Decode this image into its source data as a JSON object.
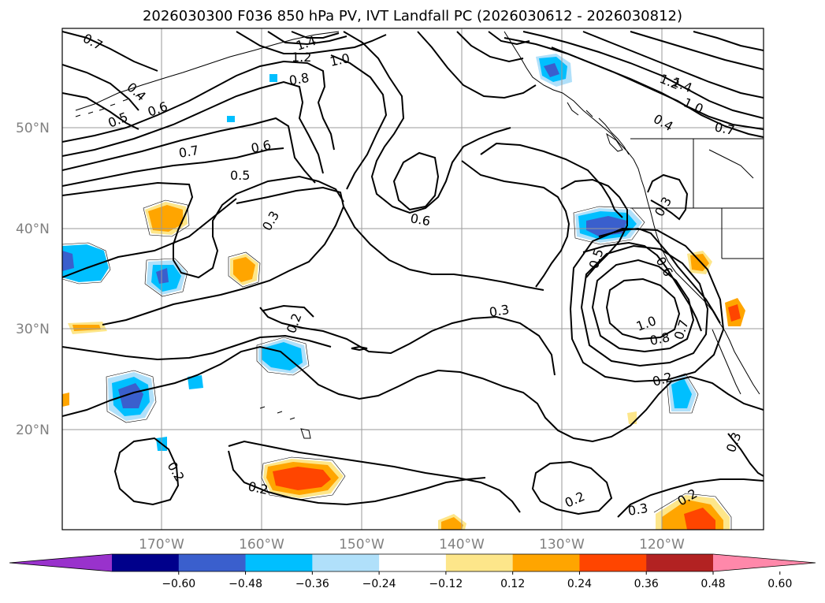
{
  "title": "2026030300 F036 850 hPa PV, IVT Landfall PC (2026030612 - 2026030812)",
  "lat_labels": [
    "50°N",
    "40°N",
    "30°N",
    "20°N"
  ],
  "lon_labels": [
    "170°W",
    "160°W",
    "150°W",
    "140°W",
    "130°W",
    "120°W"
  ],
  "contour_labels": [
    "0.7",
    "0.4",
    "0.5",
    "0.6",
    "1.4",
    "1.2",
    "1.0",
    "0.8",
    "0.7",
    "0.6",
    "0.5",
    "0.3",
    "0.6",
    "0.3",
    "0.2",
    "0.5",
    "0.6",
    "0.7",
    "1.0",
    "0.8",
    "0.2",
    "0.3",
    "0.2",
    "0.2",
    "0.3",
    "0.2",
    "0.4",
    "1.4",
    "1.2",
    "1.0",
    "0.7",
    "0.3",
    "0.2"
  ],
  "colorbar": {
    "ticks": [
      "−0.60",
      "−0.48",
      "−0.36",
      "−0.24",
      "−0.12",
      "0.12",
      "0.24",
      "0.36",
      "0.48",
      "0.60"
    ],
    "colors": [
      "#9932cc",
      "#00008b",
      "#3a5fcd",
      "#00bfff",
      "#b0e0fa",
      "#ffffff",
      "#fde68a",
      "#ffa500",
      "#ff4500",
      "#b22222",
      "#ff88aa"
    ]
  },
  "colors": {
    "land_outline": "#000000",
    "contour": "#000000",
    "grid": "#9a9a9a",
    "axis_text": "#808080"
  }
}
